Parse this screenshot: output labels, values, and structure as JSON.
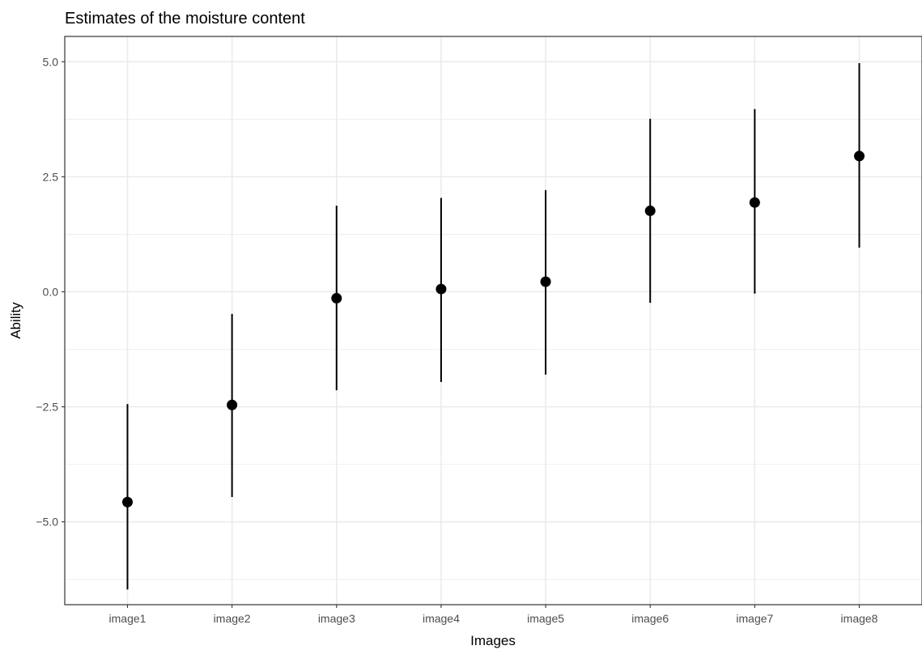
{
  "chart_data": {
    "type": "scatter",
    "title": "Estimates of the moisture content",
    "xlabel": "Images",
    "ylabel": "Ability",
    "categories": [
      "image1",
      "image2",
      "image3",
      "image4",
      "image5",
      "image6",
      "image7",
      "image8"
    ],
    "series": [
      {
        "values": [
          -4.57,
          -2.46,
          -0.14,
          0.06,
          0.22,
          1.76,
          1.94,
          2.95
        ],
        "lower": [
          -6.47,
          -4.46,
          -2.14,
          -1.96,
          -1.8,
          -0.24,
          -0.04,
          0.96
        ],
        "upper": [
          -2.44,
          -0.48,
          1.87,
          2.04,
          2.21,
          3.76,
          3.97,
          4.97
        ]
      }
    ],
    "ylim": [
      -6.8,
      5.55
    ],
    "yticks": [
      5.0,
      2.5,
      0.0,
      -2.5,
      -5.0
    ],
    "ytick_labels": [
      "5.0",
      "2.5",
      "0.0",
      "−2.5",
      "−5.0"
    ],
    "grid": true,
    "colors": {
      "point": "#000000",
      "errorbar": "#000000",
      "grid": "#ebebeb",
      "panel_border": "#333333"
    }
  }
}
